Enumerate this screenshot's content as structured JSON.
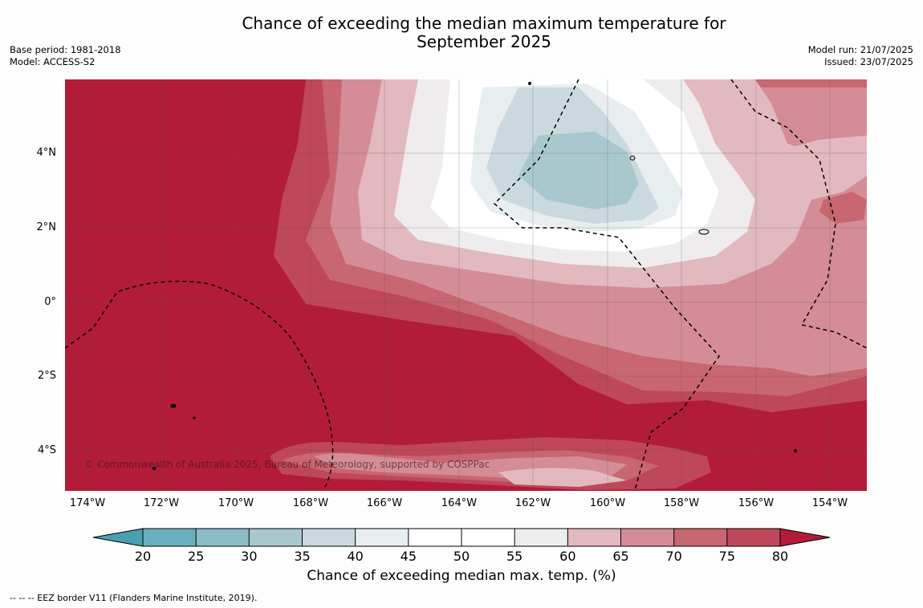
{
  "header": {
    "title_line1": "Chance of exceeding the median maximum temperature for",
    "title_line2": "September 2025",
    "base_period": "Base period: 1981-2018",
    "model": "Model: ACCESS-S2",
    "model_run": "Model run: 21/07/2025",
    "issued": "Issued: 23/07/2025"
  },
  "map": {
    "copyright": "© Commonwealth of Australia 2025, Bureau of Meteorology, supported by COSPPac",
    "lat_labels": [
      "4°N",
      "2°N",
      "0°",
      "2°S",
      "4°S"
    ],
    "lon_labels": [
      "174°W",
      "172°W",
      "170°W",
      "168°W",
      "166°W",
      "164°W",
      "162°W",
      "160°W",
      "158°W",
      "156°W",
      "154°W"
    ],
    "colors": {
      "below_20": "#4a9fb0",
      "c20_25": "#6aafbe",
      "c25_30": "#8abcc6",
      "c30_35": "#a9c8cd",
      "c35_40": "#c9d9dd",
      "c40_45": "#e8eef0",
      "c45_55": "#ffffff",
      "c55_60": "#eeeced",
      "c60_65": "#e2b9bf",
      "c65_70": "#d48d97",
      "c70_75": "#c86671",
      "c75_80": "#be4759",
      "above_80": "#b21c39"
    }
  },
  "colorbar": {
    "title": "Chance of exceeding median max. temp. (%)",
    "ticks": [
      "20",
      "25",
      "30",
      "35",
      "40",
      "45",
      "50",
      "55",
      "60",
      "65",
      "70",
      "75",
      "80"
    ],
    "segment_colors": [
      "#6aafbe",
      "#8abcc6",
      "#a9c8cd",
      "#c9d9dd",
      "#e8eef0",
      "#ffffff",
      "#ffffff",
      "#eeeced",
      "#e2b9bf",
      "#d48d97",
      "#c86671",
      "#be4759"
    ],
    "low_extend_color": "#4a9fb0",
    "high_extend_color": "#b21c39"
  },
  "footer": {
    "legend_text": "--  --  -- EEZ border V11 (Flanders Marine Institute, 2019)."
  }
}
